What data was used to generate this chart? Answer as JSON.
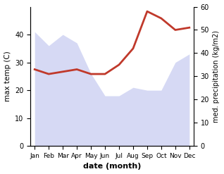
{
  "months": [
    "Jan",
    "Feb",
    "Mar",
    "Apr",
    "May",
    "Jun",
    "Jul",
    "Aug",
    "Sep",
    "Oct",
    "Nov",
    "Dec"
  ],
  "x": [
    0,
    1,
    2,
    3,
    4,
    5,
    6,
    7,
    8,
    9,
    10,
    11
  ],
  "max_temp": [
    41,
    36,
    40,
    37,
    26,
    18,
    18,
    21,
    20,
    20,
    30,
    33
  ],
  "precipitation": [
    33,
    31,
    32,
    33,
    31,
    31,
    35,
    42,
    58,
    55,
    50,
    51
  ],
  "temp_color": "#c0392b",
  "precip_fill_color": "#c5caf0",
  "xlabel": "date (month)",
  "ylabel_left": "max temp (C)",
  "ylabel_right": "med. precipitation (kg/m2)",
  "ylim_left": [
    0,
    50
  ],
  "ylim_right": [
    0,
    60
  ],
  "yticks_left": [
    0,
    10,
    20,
    30,
    40
  ],
  "yticks_right": [
    0,
    10,
    20,
    30,
    40,
    50,
    60
  ],
  "background_color": "#ffffff"
}
